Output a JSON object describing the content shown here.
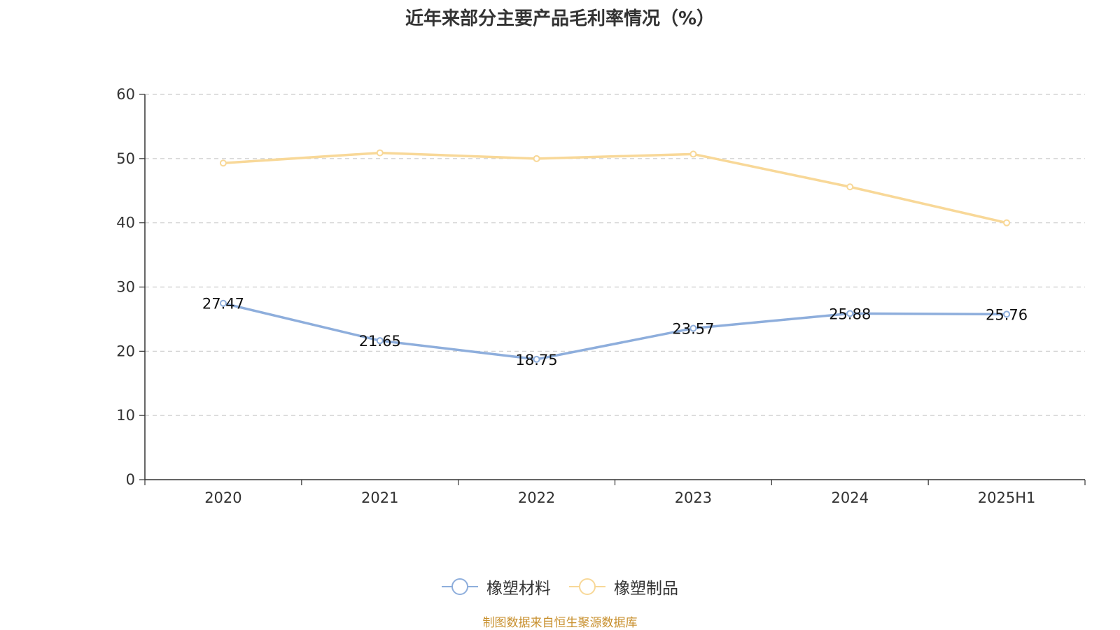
{
  "chart_data": {
    "type": "line",
    "title": "近年来部分主要产品毛利率情况（%）",
    "categories": [
      "2020",
      "2021",
      "2022",
      "2023",
      "2024",
      "2025H1"
    ],
    "ylim": [
      0,
      60
    ],
    "yticks": [
      "0",
      "10",
      "20",
      "30",
      "40",
      "50",
      "60"
    ],
    "grid": true,
    "legend_position": "bottom",
    "series": [
      {
        "name": "橡塑材料",
        "color": "#8eaedc",
        "values": [
          27.47,
          21.65,
          18.75,
          23.57,
          25.88,
          25.76
        ],
        "data_labels": [
          "27.47",
          "21.65",
          "18.75",
          "23.57",
          "25.88",
          "25.76"
        ]
      },
      {
        "name": "橡塑制品",
        "color": "#f8d898",
        "values": [
          49.3,
          50.9,
          50.0,
          50.7,
          45.6,
          40.0
        ]
      }
    ]
  },
  "source": "制图数据来自恒生聚源数据库"
}
